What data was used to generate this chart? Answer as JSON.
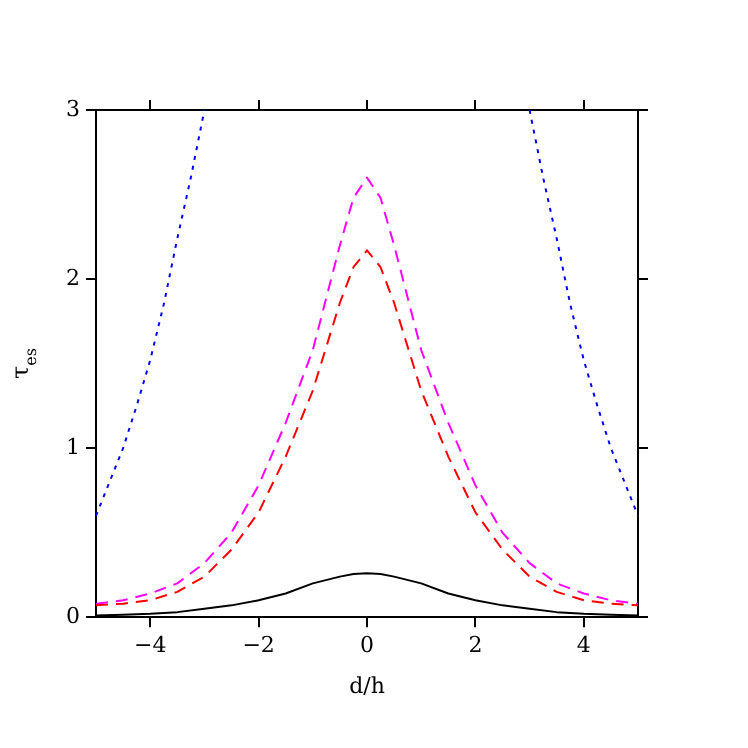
{
  "chart_data": {
    "type": "line",
    "xlabel": "d/h",
    "ylabel": "τ$_{es}$",
    "xlim": [
      -5,
      5
    ],
    "ylim": [
      0,
      3
    ],
    "xticks": [
      {
        "value": -4,
        "label": "−4"
      },
      {
        "value": -2,
        "label": "−2"
      },
      0,
      2,
      4
    ],
    "yticks": [
      0,
      1,
      2,
      3
    ],
    "grid": false,
    "legend": false,
    "marker": "none",
    "series": [
      {
        "color": "#000000",
        "line_style": "solid",
        "x": [
          -5,
          -4.5,
          -4,
          -3.5,
          -3,
          -2.5,
          -2,
          -1.5,
          -1,
          -0.5,
          -0.25,
          0,
          0.25,
          0.5,
          1,
          1.5,
          2,
          2.5,
          3,
          3.5,
          4,
          4.5,
          5
        ],
        "values": [
          0.01,
          0.015,
          0.02,
          0.03,
          0.05,
          0.07,
          0.1,
          0.14,
          0.2,
          0.24,
          0.255,
          0.26,
          0.255,
          0.24,
          0.2,
          0.14,
          0.1,
          0.07,
          0.05,
          0.03,
          0.02,
          0.015,
          0.01
        ]
      },
      {
        "color": "#ff0000",
        "line_style": "dashed",
        "x": [
          -5,
          -4.5,
          -4,
          -3.5,
          -3,
          -2.5,
          -2,
          -1.5,
          -1,
          -0.5,
          -0.25,
          0,
          0.25,
          0.5,
          1,
          1.5,
          2,
          2.5,
          3,
          3.5,
          4,
          4.5,
          5
        ],
        "values": [
          0.07,
          0.08,
          0.1,
          0.15,
          0.24,
          0.4,
          0.62,
          0.95,
          1.34,
          1.86,
          2.07,
          2.17,
          2.07,
          1.86,
          1.34,
          0.95,
          0.62,
          0.4,
          0.24,
          0.15,
          0.1,
          0.08,
          0.07
        ]
      },
      {
        "color": "#ff00ff",
        "line_style": "dashed",
        "x": [
          -5,
          -4.5,
          -4,
          -3.5,
          -3,
          -2.5,
          -2,
          -1.5,
          -1,
          -0.5,
          -0.25,
          0,
          0.25,
          0.5,
          1,
          1.5,
          2,
          2.5,
          3,
          3.5,
          4,
          4.5,
          5
        ],
        "values": [
          0.08,
          0.1,
          0.14,
          0.2,
          0.32,
          0.5,
          0.78,
          1.15,
          1.58,
          2.2,
          2.48,
          2.6,
          2.48,
          2.2,
          1.58,
          1.15,
          0.78,
          0.5,
          0.32,
          0.2,
          0.14,
          0.1,
          0.08
        ]
      },
      {
        "color": "#0000ff",
        "line_style": "dotted",
        "x": [
          -5,
          -4.75,
          -4.5,
          -4.25,
          -4,
          -3.75,
          -3.5,
          -3.25,
          -3
        ],
        "values": [
          0.6,
          0.8,
          1.0,
          1.25,
          1.52,
          1.85,
          2.24,
          2.6,
          3.0
        ]
      },
      {
        "color": "#0000ff",
        "line_style": "dotted",
        "x": [
          3,
          3.25,
          3.5,
          3.75,
          4,
          4.25,
          4.5,
          4.75,
          5
        ],
        "values": [
          3.0,
          2.6,
          2.24,
          1.85,
          1.52,
          1.25,
          1.0,
          0.8,
          0.6
        ]
      }
    ]
  }
}
